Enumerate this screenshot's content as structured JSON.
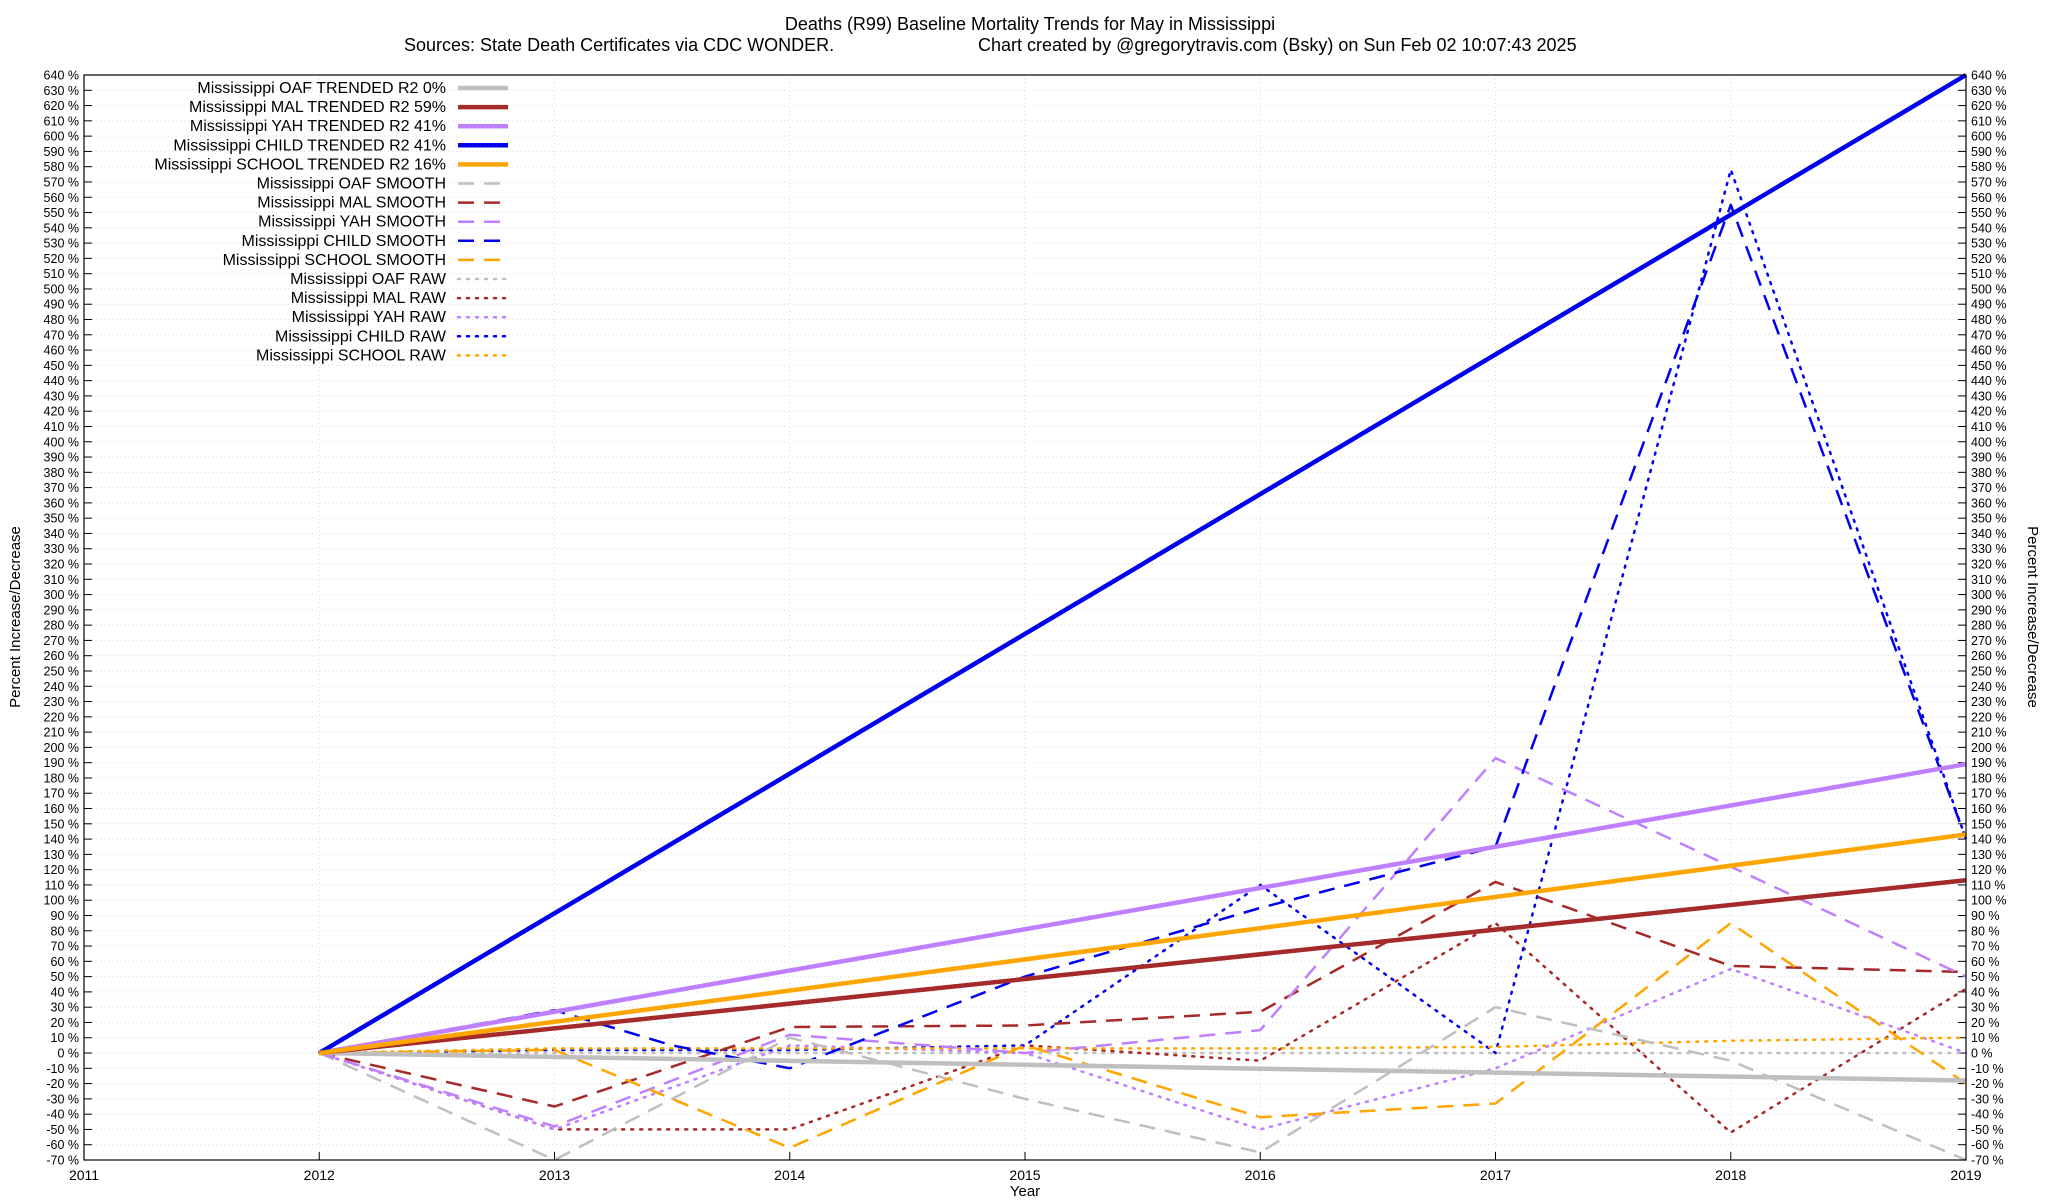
{
  "chart_data": {
    "type": "line",
    "title": "Deaths (R99)  Baseline Mortality Trends for May in Mississippi",
    "subtitle_left": "Sources: State Death Certificates via CDC WONDER.",
    "subtitle_right": "Chart created by @gregorytravis.com (Bsky) on Sun Feb 02 10:07:43 2025",
    "xlabel": "Year",
    "ylabel": "Percent Increase/Decrease",
    "ylabel_right": "Percent Increase/Decrease",
    "xlim": [
      2011,
      2019
    ],
    "ylim": [
      -70,
      640
    ],
    "x_ticks": [
      2011,
      2012,
      2013,
      2014,
      2015,
      2016,
      2017,
      2018,
      2019
    ],
    "y_tick_step": 10,
    "y_tick_suffix": " %",
    "grid": true,
    "legend_position": "top-left",
    "colors": {
      "OAF": "#bfbfbf",
      "MAL": "#a52a2a",
      "YAH": "#bf80ff",
      "CHILD": "#0000ee",
      "SCHOOL": "#ffa500"
    },
    "series": [
      {
        "name": "Mississippi OAF TRENDED R2",
        "r2": "0%",
        "group": "OAF",
        "kind": "trend",
        "x": [
          2012,
          2019
        ],
        "y": [
          0,
          -18
        ]
      },
      {
        "name": "Mississippi MAL TRENDED R2",
        "r2": "59%",
        "group": "MAL",
        "kind": "trend",
        "x": [
          2012,
          2019
        ],
        "y": [
          0,
          113
        ]
      },
      {
        "name": "Mississippi YAH TRENDED R2",
        "r2": "41%",
        "group": "YAH",
        "kind": "trend",
        "x": [
          2012,
          2019
        ],
        "y": [
          0,
          189
        ]
      },
      {
        "name": "Mississippi CHILD TRENDED R2",
        "r2": "41%",
        "group": "CHILD",
        "kind": "trend",
        "x": [
          2012,
          2019
        ],
        "y": [
          0,
          640
        ]
      },
      {
        "name": "Mississippi SCHOOL TRENDED R2",
        "r2": "16%",
        "group": "SCHOOL",
        "kind": "trend",
        "x": [
          2012,
          2019
        ],
        "y": [
          0,
          143
        ]
      },
      {
        "name": "Mississippi OAF SMOOTH",
        "group": "OAF",
        "kind": "smooth",
        "x": [
          2012,
          2013,
          2014,
          2015,
          2016,
          2017,
          2018,
          2019
        ],
        "y": [
          0,
          -70,
          10,
          -30,
          -65,
          30,
          -5,
          -70
        ]
      },
      {
        "name": "Mississippi MAL SMOOTH",
        "group": "MAL",
        "kind": "smooth",
        "x": [
          2012,
          2013,
          2014,
          2015,
          2016,
          2017,
          2018,
          2019
        ],
        "y": [
          0,
          -35,
          17,
          18,
          27,
          112,
          57,
          53
        ]
      },
      {
        "name": "Mississippi YAH SMOOTH",
        "group": "YAH",
        "kind": "smooth",
        "x": [
          2012,
          2013,
          2014,
          2015,
          2016,
          2017,
          2018,
          2019
        ],
        "y": [
          0,
          -48,
          12,
          0,
          15,
          193,
          122,
          50
        ]
      },
      {
        "name": "Mississippi CHILD SMOOTH",
        "group": "CHILD",
        "kind": "smooth",
        "x": [
          2012,
          2013,
          2013.5,
          2014,
          2015,
          2016,
          2017,
          2018,
          2019
        ],
        "y": [
          0,
          28,
          5,
          -10,
          50,
          95,
          135,
          555,
          140
        ]
      },
      {
        "name": "Mississippi SCHOOL SMOOTH",
        "group": "SCHOOL",
        "kind": "smooth",
        "x": [
          2012,
          2013,
          2014,
          2015,
          2016,
          2017,
          2018,
          2019
        ],
        "y": [
          0,
          2,
          -62,
          5,
          -42,
          -33,
          85,
          -20
        ]
      },
      {
        "name": "Mississippi OAF RAW",
        "group": "OAF",
        "kind": "raw",
        "x": [
          2012,
          2013,
          2014,
          2015,
          2016,
          2017,
          2018,
          2019
        ],
        "y": [
          0,
          0,
          0,
          0,
          0,
          0,
          0,
          0
        ]
      },
      {
        "name": "Mississippi MAL RAW",
        "group": "MAL",
        "kind": "raw",
        "x": [
          2012,
          2013,
          2014,
          2015,
          2016,
          2017,
          2018,
          2019
        ],
        "y": [
          0,
          -50,
          -50,
          5,
          -5,
          85,
          -52,
          42
        ]
      },
      {
        "name": "Mississippi YAH RAW",
        "group": "YAH",
        "kind": "raw",
        "x": [
          2012,
          2013,
          2014,
          2015,
          2016,
          2017,
          2018,
          2019
        ],
        "y": [
          0,
          -50,
          5,
          0,
          -50,
          -10,
          55,
          0
        ]
      },
      {
        "name": "Mississippi CHILD RAW",
        "group": "CHILD",
        "kind": "raw",
        "x": [
          2012,
          2013,
          2014,
          2015,
          2016,
          2017,
          2018,
          2019
        ],
        "y": [
          0,
          2,
          2,
          5,
          110,
          0,
          578,
          140
        ]
      },
      {
        "name": "Mississippi SCHOOL RAW",
        "group": "SCHOOL",
        "kind": "raw",
        "x": [
          2012,
          2013,
          2014,
          2015,
          2016,
          2017,
          2018,
          2019
        ],
        "y": [
          0,
          3,
          3,
          3,
          3,
          4,
          8,
          10
        ]
      }
    ]
  }
}
